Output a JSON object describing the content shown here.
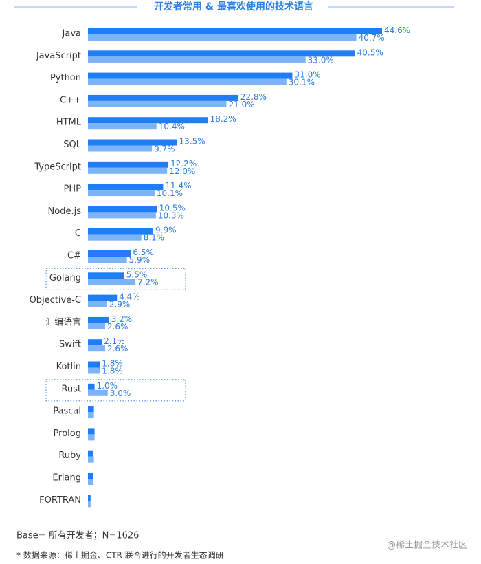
{
  "chart_data": {
    "type": "hbar",
    "title": "开发者常用 & 最喜欢使用的技术语言",
    "categories": [
      "Java",
      "JavaScript",
      "Python",
      "C++",
      "HTML",
      "SQL",
      "TypeScript",
      "PHP",
      "Node.js",
      "C",
      "C#",
      "Golang",
      "Objective-C",
      "汇编语言",
      "Swift",
      "Kotlin",
      "Rust",
      "Pascal",
      "Prolog",
      "Ruby",
      "Erlang",
      "FORTRAN"
    ],
    "series": [
      {
        "color": "#1f7ef5",
        "values": [
          44.6,
          40.5,
          31.0,
          22.8,
          18.2,
          13.5,
          12.2,
          11.4,
          10.5,
          9.9,
          6.5,
          5.5,
          4.4,
          3.2,
          2.1,
          1.8,
          1.0,
          0.9,
          1.0,
          0.8,
          0.8,
          0.4
        ],
        "value_labels": [
          "44.6%",
          "40.5%",
          "31.0%",
          "22.8%",
          "18.2%",
          "13.5%",
          "12.2%",
          "11.4%",
          "10.5%",
          "9.9%",
          "6.5%",
          "5.5%",
          "4.4%",
          "3.2%",
          "2.1%",
          "1.8%",
          "1.0%",
          null,
          null,
          null,
          null,
          null
        ]
      },
      {
        "color": "#7db4f8",
        "values": [
          40.7,
          33.0,
          30.1,
          21.0,
          10.4,
          9.7,
          12.0,
          10.1,
          10.3,
          8.1,
          5.9,
          7.2,
          2.9,
          2.6,
          2.6,
          1.8,
          3.0,
          0.9,
          1.0,
          0.9,
          0.8,
          0.4
        ],
        "value_labels": [
          "40.7%",
          "33.0%",
          "30.1%",
          "21.0%",
          "10.4%",
          "9.7%",
          "12.0%",
          "10.1%",
          "10.3%",
          "8.1%",
          "5.9%",
          "7.2%",
          "2.9%",
          "2.6%",
          "2.6%",
          "1.8%",
          "3.0%",
          null,
          null,
          null,
          null,
          null
        ]
      }
    ],
    "highlight": [
      11,
      16
    ],
    "base_note": "Base= 所有开发者；N=1626",
    "source_note": "* 数据来源：稀土掘金、CTR 联合进行的开发者生态调研",
    "watermark": "@稀土掘金技术社区"
  }
}
